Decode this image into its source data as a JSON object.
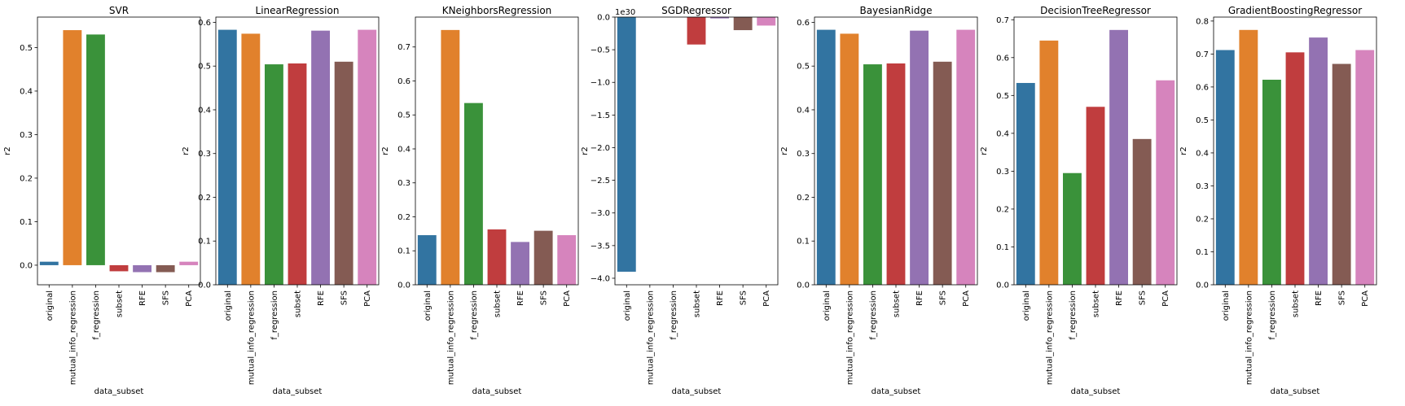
{
  "chart_data": [
    {
      "type": "bar",
      "title": "SVR",
      "xlabel": "data_subset",
      "ylabel": "r2",
      "categories": [
        "original",
        "mutual_info_regression",
        "f_regression",
        "subset",
        "RFE",
        "SFS",
        "PCA"
      ],
      "values": [
        0.008,
        0.54,
        0.53,
        -0.014,
        -0.016,
        -0.016,
        0.008
      ],
      "ylim": [
        -0.045,
        0.57
      ],
      "yticks": [
        0.0,
        0.1,
        0.2,
        0.3,
        0.4,
        0.5
      ],
      "ytick_labels": [
        "0.0",
        "0.1",
        "0.2",
        "0.3",
        "0.4",
        "0.5"
      ],
      "offset_label": "",
      "grid": false
    },
    {
      "type": "bar",
      "title": "LinearRegression",
      "xlabel": "data_subset",
      "ylabel": "r2",
      "categories": [
        "original",
        "mutual_info_regression",
        "f_regression",
        "subset",
        "RFE",
        "SFS",
        "PCA"
      ],
      "values": [
        0.583,
        0.574,
        0.504,
        0.506,
        0.581,
        0.51,
        0.583
      ],
      "ylim": [
        0,
        0.612
      ],
      "yticks": [
        0.0,
        0.1,
        0.2,
        0.3,
        0.4,
        0.5,
        0.6
      ],
      "ytick_labels": [
        "0.0",
        "0.1",
        "0.2",
        "0.3",
        "0.4",
        "0.5",
        "0.6"
      ],
      "offset_label": "",
      "grid": false
    },
    {
      "type": "bar",
      "title": "KNeighborsRegression",
      "xlabel": "data_subset",
      "ylabel": "r2",
      "categories": [
        "original",
        "mutual_info_regression",
        "f_regression",
        "subset",
        "RFE",
        "SFS",
        "PCA"
      ],
      "values": [
        0.146,
        0.75,
        0.535,
        0.163,
        0.126,
        0.159,
        0.146
      ],
      "ylim": [
        0,
        0.788
      ],
      "yticks": [
        0.0,
        0.1,
        0.2,
        0.3,
        0.4,
        0.5,
        0.6,
        0.7
      ],
      "ytick_labels": [
        "0.0",
        "0.1",
        "0.2",
        "0.3",
        "0.4",
        "0.5",
        "0.6",
        "0.7"
      ],
      "offset_label": "",
      "grid": false
    },
    {
      "type": "bar",
      "title": "SGDRegressor",
      "xlabel": "data_subset",
      "ylabel": "r2",
      "categories": [
        "original",
        "mutual_info_regression",
        "f_regression",
        "subset",
        "RFE",
        "SFS",
        "PCA"
      ],
      "values": [
        -3.9,
        0.0,
        0.0,
        -0.42,
        -0.02,
        -0.2,
        -0.13
      ],
      "ylim": [
        -4.1,
        0.0
      ],
      "yticks": [
        -4.0,
        -3.5,
        -3.0,
        -2.5,
        -2.0,
        -1.5,
        -1.0,
        -0.5,
        0.0
      ],
      "ytick_labels": [
        "−4.0",
        "−3.5",
        "−3.0",
        "−2.5",
        "−2.0",
        "−1.5",
        "−1.0",
        "−0.5",
        "0.0"
      ],
      "offset_label": "1e30",
      "grid": false
    },
    {
      "type": "bar",
      "title": "BayesianRidge",
      "xlabel": "data_subset",
      "ylabel": "r2",
      "categories": [
        "original",
        "mutual_info_regression",
        "f_regression",
        "subset",
        "RFE",
        "SFS",
        "PCA"
      ],
      "values": [
        0.583,
        0.574,
        0.504,
        0.506,
        0.581,
        0.51,
        0.583
      ],
      "ylim": [
        0,
        0.612
      ],
      "yticks": [
        0.0,
        0.1,
        0.2,
        0.3,
        0.4,
        0.5,
        0.6
      ],
      "ytick_labels": [
        "0.0",
        "0.1",
        "0.2",
        "0.3",
        "0.4",
        "0.5",
        "0.6"
      ],
      "offset_label": "",
      "grid": false
    },
    {
      "type": "bar",
      "title": "DecisionTreeRegressor",
      "xlabel": "data_subset",
      "ylabel": "r2",
      "categories": [
        "original",
        "mutual_info_regression",
        "f_regression",
        "subset",
        "RFE",
        "SFS",
        "PCA"
      ],
      "values": [
        0.533,
        0.645,
        0.295,
        0.47,
        0.673,
        0.385,
        0.54
      ],
      "ylim": [
        0,
        0.707
      ],
      "yticks": [
        0.0,
        0.1,
        0.2,
        0.3,
        0.4,
        0.5,
        0.6,
        0.7
      ],
      "ytick_labels": [
        "0.0",
        "0.1",
        "0.2",
        "0.3",
        "0.4",
        "0.5",
        "0.6",
        "0.7"
      ],
      "offset_label": "",
      "grid": false
    },
    {
      "type": "bar",
      "title": "GradientBoostingRegressor",
      "xlabel": "data_subset",
      "ylabel": "r2",
      "categories": [
        "original",
        "mutual_info_regression",
        "f_regression",
        "subset",
        "RFE",
        "SFS",
        "PCA"
      ],
      "values": [
        0.712,
        0.773,
        0.622,
        0.705,
        0.75,
        0.67,
        0.712
      ],
      "ylim": [
        0,
        0.812
      ],
      "yticks": [
        0.0,
        0.1,
        0.2,
        0.3,
        0.4,
        0.5,
        0.6,
        0.7,
        0.8
      ],
      "ytick_labels": [
        "0.0",
        "0.1",
        "0.2",
        "0.3",
        "0.4",
        "0.5",
        "0.6",
        "0.7",
        "0.8"
      ],
      "offset_label": "",
      "grid": false
    }
  ],
  "colors": [
    "#3274a1",
    "#e1812c",
    "#3a923a",
    "#c03d3e",
    "#9372b2",
    "#845b53",
    "#d684bd"
  ]
}
